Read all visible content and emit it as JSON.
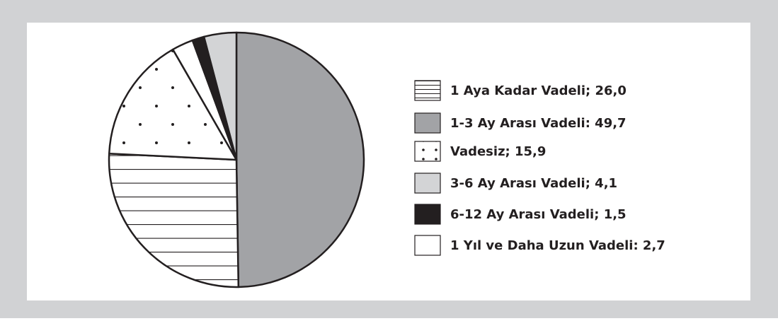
{
  "chart_data": {
    "type": "pie",
    "categories": [
      "1 Aya Kadar Vadeli; 26,0",
      "1-3 Ay Arası Vadeli: 49,7",
      "Vadesiz; 15,9",
      "3-6 Ay Arası Vadeli; 4,1",
      "6-12 Ay Arası Vadeli; 1,5",
      "1 Yıl ve Daha Uzun Vadeli: 2,7"
    ],
    "values": [
      26.0,
      49.7,
      15.9,
      4.1,
      1.5,
      2.7
    ],
    "colors": [
      "#ffffff",
      "#a2a3a6",
      "#ffffff",
      "#d3d4d6",
      "#231f20",
      "#ffffff"
    ],
    "patterns": [
      "horizontal-lines",
      null,
      "dots",
      null,
      null,
      null
    ]
  }
}
